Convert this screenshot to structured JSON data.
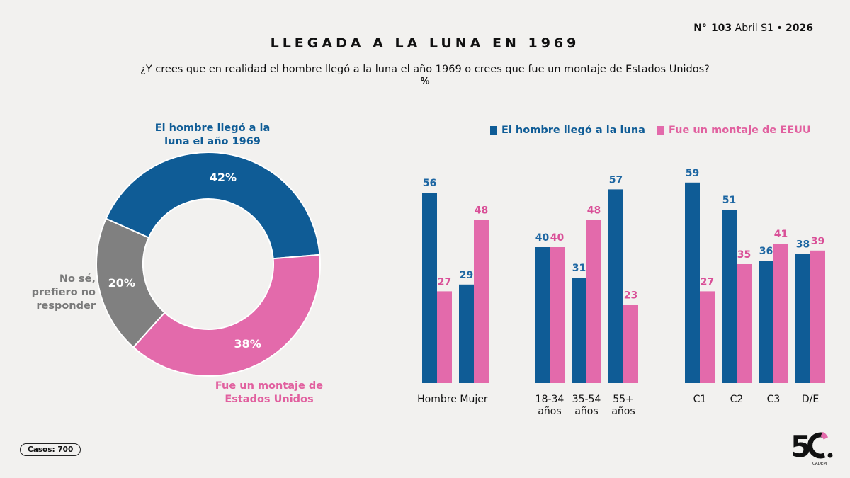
{
  "header": {
    "issue_prefix": "N°",
    "issue_number": "103",
    "issue_period": "Abril S1 •",
    "issue_year": "2026"
  },
  "title": "LLEGADA A LA LUNA EN 1969",
  "question": "¿Y crees que en realidad el hombre llegó a la luna el año 1969 o crees que fue un montaje de Estados Unidos?",
  "unit": "%",
  "colors": {
    "blue": "#0f5c96",
    "pink": "#e36aab",
    "gray": "#808080"
  },
  "donut_labels": {
    "blue": "El hombre llegó a la luna el año 1969",
    "gray": "No sé, prefiero no responder",
    "pink": "Fue un montaje de Estados Unidos"
  },
  "legend": {
    "blue": "El hombre llegó a la luna",
    "pink": "Fue un montaje de EEUU"
  },
  "footer": {
    "cases": "Casos: 700"
  },
  "logo": {
    "text": "5C.",
    "subtext": "CADEM"
  },
  "chart_data": [
    {
      "type": "pie",
      "title": "LLEGADA A LA LUNA EN 1969",
      "slices": [
        {
          "name": "El hombre llegó a la luna el año 1969",
          "value": 42,
          "label": "42%",
          "color": "#0f5c96"
        },
        {
          "name": "Fue un montaje de Estados Unidos",
          "value": 38,
          "label": "38%",
          "color": "#e36aab"
        },
        {
          "name": "No sé, prefiero no responder",
          "value": 20,
          "label": "20%",
          "color": "#808080"
        }
      ]
    },
    {
      "type": "bar",
      "categories": [
        "Hombre",
        "Mujer",
        "18-34 años",
        "35-54 años",
        "55+ años",
        "C1",
        "C2",
        "C3",
        "D/E"
      ],
      "groups": [
        [
          "Hombre",
          "Mujer"
        ],
        [
          "18-34 años",
          "35-54 años",
          "55+ años"
        ],
        [
          "C1",
          "C2",
          "C3",
          "D/E"
        ]
      ],
      "series": [
        {
          "name": "El hombre llegó a la luna",
          "color": "#0f5c96",
          "values": [
            56,
            29,
            40,
            31,
            57,
            59,
            51,
            36,
            38
          ]
        },
        {
          "name": "Fue un montaje de EEUU",
          "color": "#e36aab",
          "values": [
            27,
            48,
            40,
            48,
            23,
            27,
            35,
            41,
            39
          ]
        }
      ],
      "ylim": [
        0,
        65
      ]
    }
  ]
}
